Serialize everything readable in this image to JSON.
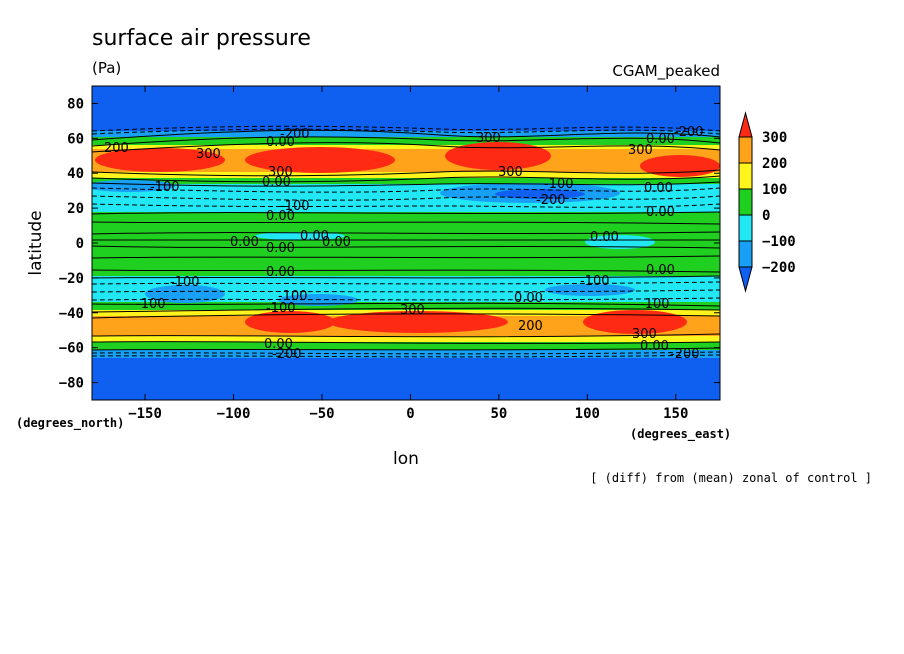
{
  "title": "surface air pressure",
  "units": "(Pa)",
  "run_label": "CGAM_peaked",
  "footnote": "[ (diff) from (mean) zonal of control ]",
  "chart_data": {
    "type": "heatmap",
    "title": "surface air pressure",
    "subtitle": "(Pa)",
    "xlabel": "lon",
    "ylabel": "latitude",
    "x_unit_label": "(degrees_east)",
    "y_unit_label": "(degrees_north)",
    "xlim": [
      -180,
      175
    ],
    "ylim": [
      -90,
      90
    ],
    "xticks": [
      -150,
      -100,
      -50,
      0,
      50,
      100,
      150
    ],
    "yticks": [
      -80,
      -60,
      -40,
      -20,
      0,
      20,
      40,
      60,
      80
    ],
    "contour_labels_visible": [
      "-200",
      "-100",
      "0.00",
      "100",
      "200",
      "300"
    ],
    "colorbar": {
      "levels": [
        -200,
        -100,
        0,
        100,
        200,
        300
      ],
      "tick_labels": [
        "300",
        "200",
        "100",
        "0",
        "−100",
        "−200"
      ],
      "colors": [
        "#0f5ff0",
        "#17a0f5",
        "#22e8f5",
        "#20d020",
        "#fff41c",
        "#ffa31a",
        "#ff2a14"
      ],
      "extend": "both"
    },
    "features": [
      {
        "kind": "max",
        "value": 300,
        "lon": -125,
        "lat": 47
      },
      {
        "kind": "max",
        "value": 300,
        "lon": -62,
        "lat": 47
      },
      {
        "kind": "max",
        "value": 300,
        "lon": 47,
        "lat": 48
      },
      {
        "kind": "max",
        "value": 300,
        "lon": 145,
        "lat": 45
      },
      {
        "kind": "max",
        "value": 300,
        "lon": -65,
        "lat": -45
      },
      {
        "kind": "max",
        "value": 300,
        "lon": 5,
        "lat": -45
      },
      {
        "kind": "max",
        "value": 300,
        "lon": 125,
        "lat": -45
      },
      {
        "kind": "min",
        "value": -200,
        "lon": 60,
        "lat": 28
      },
      {
        "kind": "min",
        "value": -100,
        "lon": -130,
        "lat": -29
      }
    ]
  }
}
